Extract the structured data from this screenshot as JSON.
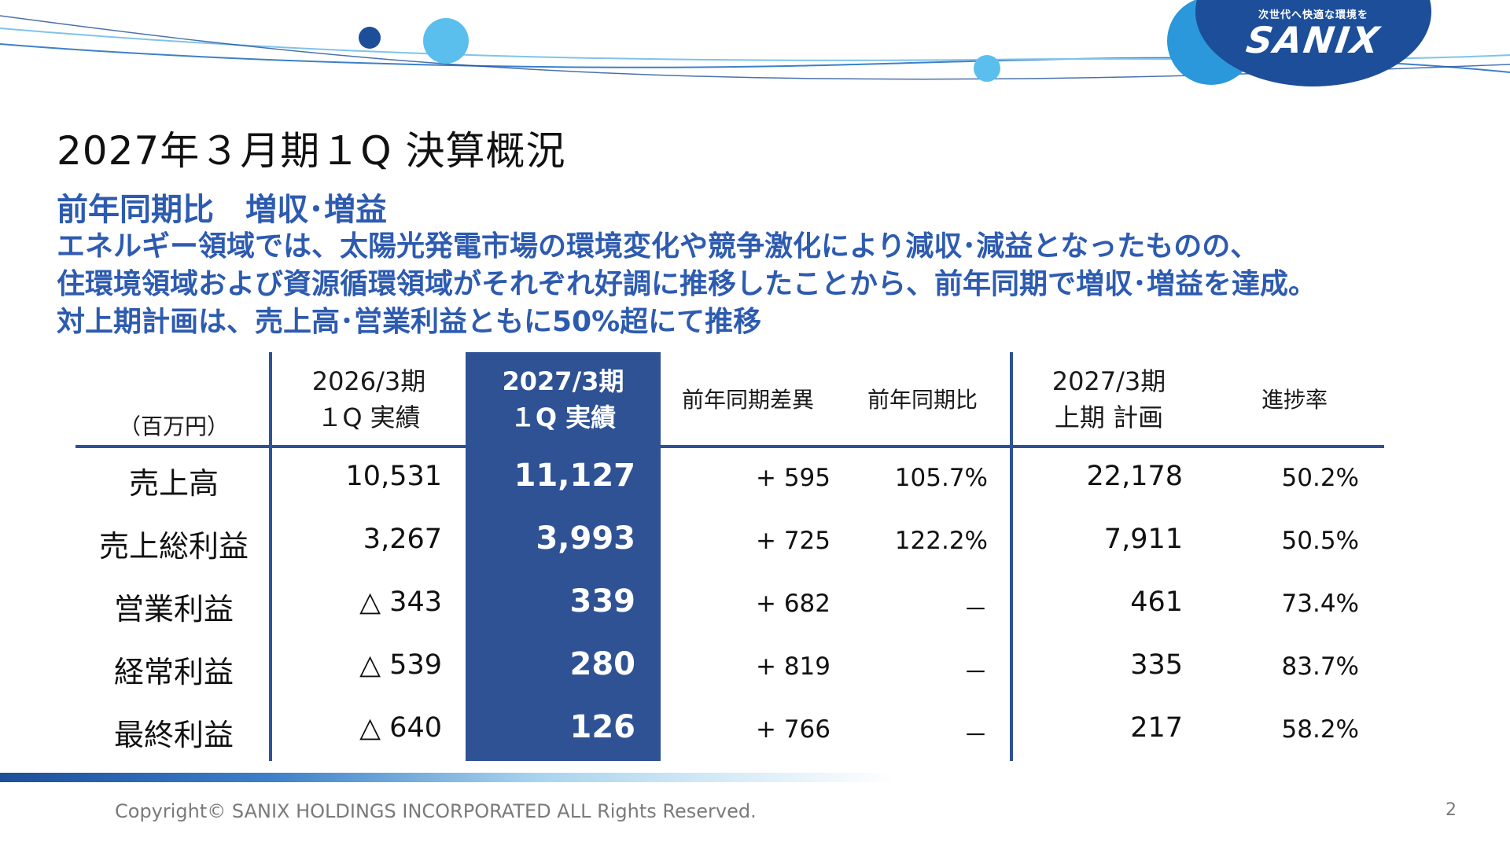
{
  "logo": {
    "tagline": "次世代へ快適な環境を",
    "wordmark": "SANIX"
  },
  "colors": {
    "accent": "#2d5bb0",
    "table_highlight": "#2e5294",
    "logo_blue": "#1d4e9a",
    "light_blue": "#5bbfee"
  },
  "title": "2027年３月期１Q 決算概況",
  "headline": "前年同期比　増収･増益",
  "summary": [
    "エネルギー領域では、太陽光発電市場の環境変化や競争激化により減収･減益となったものの、",
    "住環境領域および資源循環領域がそれぞれ好調に推移したことから、前年同期で増収･増益を達成。",
    "対上期計画は、売上高･営業利益ともに50%超にて推移"
  ],
  "table": {
    "unit": "（百万円）",
    "headers": {
      "prev_actual": [
        "2026/3期",
        "１Q 実績"
      ],
      "curr_actual": [
        "2027/3期",
        "１Q 実績"
      ],
      "diff": "前年同期差異",
      "ratio": "前年同期比",
      "plan": [
        "2027/3期",
        "上期 計画"
      ],
      "progress": "進捗率"
    },
    "rows": [
      {
        "label": "売上高",
        "prev": "10,531",
        "curr": "11,127",
        "diff": "+ 595",
        "ratio": "105.7%",
        "plan": "22,178",
        "progress": "50.2%"
      },
      {
        "label": "売上総利益",
        "prev": "3,267",
        "curr": "3,993",
        "diff": "+ 725",
        "ratio": "122.2%",
        "plan": "7,911",
        "progress": "50.5%"
      },
      {
        "label": "営業利益",
        "prev": "△ 343",
        "curr": "339",
        "diff": "+ 682",
        "ratio": "－",
        "plan": "461",
        "progress": "73.4%"
      },
      {
        "label": "経常利益",
        "prev": "△ 539",
        "curr": "280",
        "diff": "+ 819",
        "ratio": "－",
        "plan": "335",
        "progress": "83.7%"
      },
      {
        "label": "最終利益",
        "prev": "△ 640",
        "curr": "126",
        "diff": "+ 766",
        "ratio": "－",
        "plan": "217",
        "progress": "58.2%"
      }
    ]
  },
  "footer": {
    "copyright": "Copyright© SANIX HOLDINGS INCORPORATED  ALL Rights Reserved.",
    "page_number": "2"
  }
}
